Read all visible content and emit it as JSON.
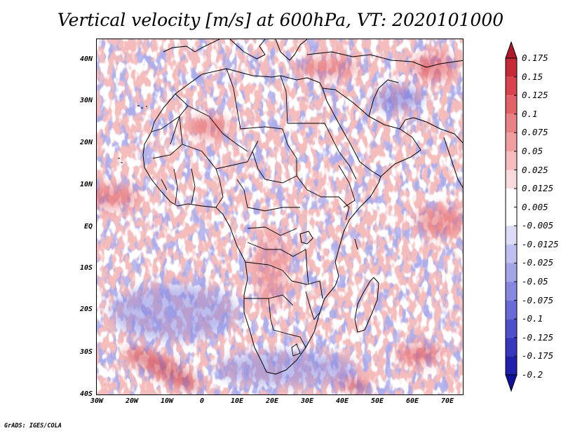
{
  "title": "Vertical velocity [m/s] at 600hPa, VT: 2020101000",
  "footer": "GrADS: IGES/COLA",
  "axes": {
    "lat_labels": [
      "40N",
      "30N",
      "20N",
      "10N",
      "EQ",
      "10S",
      "20S",
      "30S",
      "40S"
    ],
    "lon_labels": [
      "30W",
      "20W",
      "10W",
      "0",
      "10E",
      "20E",
      "30E",
      "40E",
      "50E",
      "60E",
      "70E"
    ]
  },
  "colorbar": {
    "labels": [
      "0.175",
      "0.15",
      "0.125",
      "0.1",
      "0.075",
      "0.05",
      "0.025",
      "0.0125",
      "0.005",
      "-0.005",
      "-0.0125",
      "-0.025",
      "-0.05",
      "-0.075",
      "-0.1",
      "-0.125",
      "-0.175",
      "-0.2"
    ],
    "colors": [
      "#b2182b",
      "#c62a37",
      "#d9434d",
      "#e26268",
      "#ea8185",
      "#f09ea0",
      "#f6bcbd",
      "#fadada",
      "#ffffff",
      "#ffffff",
      "#dcdcf6",
      "#c0c0f0",
      "#a3a3e8",
      "#8787e0",
      "#6a6ad6",
      "#4f4fcb",
      "#3737bd",
      "#2020aa",
      "#10109a"
    ]
  },
  "palette": {
    "background": "#b9b9ee",
    "positive": "#e98a86",
    "negative": "#8c8ce0",
    "border": "#000000"
  }
}
